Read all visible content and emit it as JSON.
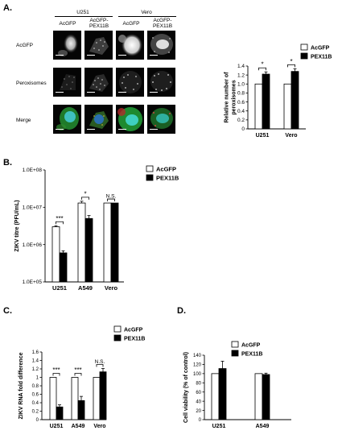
{
  "panel_labels": {
    "a": "A.",
    "b": "B.",
    "c": "C.",
    "d": "D."
  },
  "micrographs": {
    "cell_line_headers": [
      "U251",
      "Vero"
    ],
    "column_headers": [
      "AcGFP",
      "AcGFP-\nPEX11B",
      "AcGFP",
      "AcGFP-\nPEX11B"
    ],
    "row_headers": [
      "AcGFP",
      "Peroxisomes",
      "Merge"
    ]
  },
  "chart_data": [
    {
      "id": "A",
      "type": "bar",
      "categories": [
        "U251",
        "Vero"
      ],
      "series": [
        {
          "name": "AcGFP",
          "values": [
            1.0,
            1.0
          ],
          "errors": [
            0.0,
            0.0
          ],
          "fill": "#ffffff"
        },
        {
          "name": "PEX11B",
          "values": [
            1.22,
            1.28
          ],
          "errors": [
            0.05,
            0.06
          ],
          "fill": "#000000"
        }
      ],
      "ylabel": "Relative number of\nperoxisomes",
      "ylim": [
        0,
        1.4
      ],
      "yticks": [
        "0",
        "0.2",
        "0.4",
        "0.6",
        "0.8",
        "1.0",
        "1.2",
        "1.4"
      ],
      "significance": [
        "*",
        "*"
      ],
      "legend": "right"
    },
    {
      "id": "B",
      "type": "bar",
      "yscale": "log",
      "categories": [
        "U251",
        "A549",
        "Vero"
      ],
      "series": [
        {
          "name": "AcGFP",
          "values": [
            3000000,
            13000000,
            13000000
          ],
          "errors": [
            200000,
            1500000,
            0
          ],
          "fill": "#ffffff"
        },
        {
          "name": "PEX11B",
          "values": [
            600000,
            5000000,
            13000000
          ],
          "errors": [
            80000,
            1000000,
            0
          ],
          "fill": "#000000"
        }
      ],
      "ylabel": "ZIKV titre (PFU/mL)",
      "ylim": [
        100000,
        100000000
      ],
      "yticks": [
        "1.0E+05",
        "1.0E+06",
        "1.0E+07",
        "1.0E+08"
      ],
      "significance": [
        "***",
        "*",
        "N.S."
      ],
      "legend": "top-right"
    },
    {
      "id": "C",
      "type": "bar",
      "categories": [
        "U251",
        "A549",
        "Vero"
      ],
      "series": [
        {
          "name": "AcGFP",
          "values": [
            1.0,
            1.0,
            1.0
          ],
          "errors": [
            0.0,
            0.0,
            0.0
          ],
          "fill": "#ffffff"
        },
        {
          "name": "PEX11B",
          "values": [
            0.3,
            0.45,
            1.13
          ],
          "errors": [
            0.05,
            0.1,
            0.08
          ],
          "fill": "#000000"
        }
      ],
      "ylabel": "ZIKV RNA fold difference",
      "ylim": [
        0,
        1.6
      ],
      "yticks": [
        "0",
        "0.2",
        "0.4",
        "0.6",
        "0.8",
        "1",
        "1.2",
        "1.4",
        "1.6"
      ],
      "significance": [
        "***",
        "***",
        "N.S."
      ],
      "legend": "top-right"
    },
    {
      "id": "D",
      "type": "bar",
      "categories": [
        "U251",
        "A549"
      ],
      "series": [
        {
          "name": "AcGFP",
          "values": [
            100,
            100
          ],
          "errors": [
            0,
            0
          ],
          "fill": "#ffffff"
        },
        {
          "name": "PEX11B",
          "values": [
            111,
            98
          ],
          "errors": [
            16,
            3
          ],
          "fill": "#000000"
        }
      ],
      "ylabel": "Cell viability (% of control)",
      "ylim": [
        0,
        140
      ],
      "yticks": [
        "0",
        "20",
        "40",
        "60",
        "80",
        "100",
        "120",
        "140"
      ],
      "significance": [],
      "legend": "top-right"
    }
  ]
}
